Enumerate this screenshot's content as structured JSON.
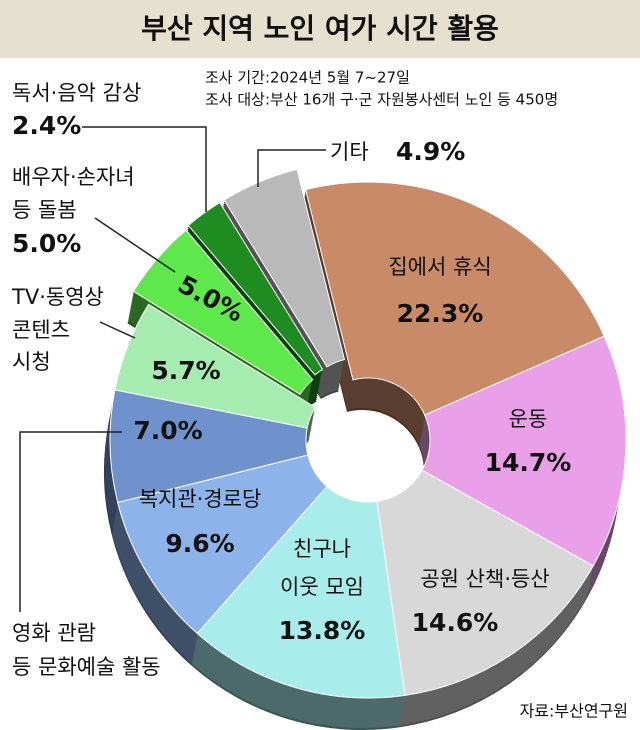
{
  "chart_data": {
    "type": "pie",
    "title": "부산 지역 노인 여가 시간 활용",
    "notes": [
      "조사 기간:2024년 5월 7~27일",
      "조사 대상:부산 16개 구·군 자원봉사센터 노인 등 450명"
    ],
    "source": "자료:부산연구원",
    "categories": [
      [
        "집에서 휴식"
      ],
      [
        "운동"
      ],
      [
        "공원 산책·등산"
      ],
      [
        "친구나",
        "이웃 모임"
      ],
      [
        "복지관·경로당"
      ],
      [
        "영화 관람",
        "등 문화예술 활동"
      ],
      [
        "TV·동영상",
        "콘텐츠",
        "시청"
      ],
      [
        "배우자·손자녀",
        "등 돌봄"
      ],
      [
        "독서·음악 감상"
      ],
      [
        "기타"
      ]
    ],
    "values": [
      22.3,
      14.7,
      14.6,
      13.8,
      9.6,
      7.0,
      5.7,
      5.0,
      2.4,
      4.9
    ],
    "value_labels": [
      "22.3%",
      "14.7%",
      "14.6%",
      "13.8%",
      "9.6%",
      "7.0%",
      "5.7%",
      "5.0%",
      "2.4%",
      "4.9%"
    ],
    "colors": [
      "#c98a68",
      "#eaa0e8",
      "#d8d8d8",
      "#a8ecec",
      "#8db4ea",
      "#7092cc",
      "#a6ecb0",
      "#5fe84b",
      "#1f8c22",
      "#b9b9b9"
    ]
  }
}
